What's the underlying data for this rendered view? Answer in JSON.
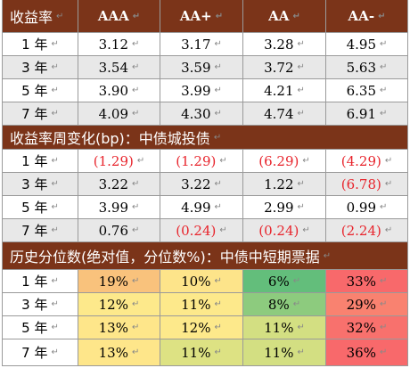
{
  "header": {
    "label": "收益率",
    "cols": [
      "AAA",
      "AA+",
      "AA",
      "AA-"
    ]
  },
  "yield_rows": [
    {
      "label": "1 年",
      "values": [
        "3.12",
        "3.17",
        "3.28",
        "4.95"
      ],
      "shade": false
    },
    {
      "label": "3 年",
      "values": [
        "3.54",
        "3.59",
        "3.72",
        "5.63"
      ],
      "shade": true
    },
    {
      "label": "5 年",
      "values": [
        "3.90",
        "3.99",
        "4.21",
        "6.35"
      ],
      "shade": false
    },
    {
      "label": "7 年",
      "values": [
        "4.09",
        "4.30",
        "4.74",
        "6.91"
      ],
      "shade": true
    }
  ],
  "weekly_title": "收益率周变化(bp)：中债城投债",
  "weekly_rows": [
    {
      "label": "1 年",
      "values": [
        "(1.29)",
        "(1.29)",
        "(6.29)",
        "(4.29)"
      ],
      "neg": [
        true,
        true,
        true,
        true
      ],
      "shade": false
    },
    {
      "label": "3 年",
      "values": [
        "3.22",
        "3.22",
        "1.22",
        "(6.78)"
      ],
      "neg": [
        false,
        false,
        false,
        true
      ],
      "shade": true
    },
    {
      "label": "5 年",
      "values": [
        "3.99",
        "4.99",
        "2.99",
        "0.99"
      ],
      "neg": [
        false,
        false,
        false,
        false
      ],
      "shade": false
    },
    {
      "label": "7 年",
      "values": [
        "0.76",
        "(0.24)",
        "(0.24)",
        "(2.24)"
      ],
      "neg": [
        false,
        true,
        true,
        true
      ],
      "shade": true
    }
  ],
  "percentile_title": "历史分位数(绝对值，分位数%)：中债中短期票据",
  "percentile_rows": [
    {
      "label": "1 年",
      "values": [
        "19%",
        "10%",
        "6%",
        "33%"
      ],
      "colors": [
        "#f9c27c",
        "#fde48a",
        "#63be7b",
        "#f8696b"
      ]
    },
    {
      "label": "3 年",
      "values": [
        "12%",
        "11%",
        "8%",
        "29%"
      ],
      "colors": [
        "#fde98b",
        "#fde98b",
        "#8dcb7e",
        "#f98270"
      ]
    },
    {
      "label": "5 年",
      "values": [
        "13%",
        "12%",
        "11%",
        "32%"
      ],
      "colors": [
        "#fee68a",
        "#fde98b",
        "#d3df82",
        "#f8716d"
      ]
    },
    {
      "label": "7 年",
      "values": [
        "13%",
        "11%",
        "11%",
        "36%"
      ],
      "colors": [
        "#fee68a",
        "#dde283",
        "#d3df82",
        "#f8696b"
      ]
    }
  ],
  "cell_mark": "↵"
}
